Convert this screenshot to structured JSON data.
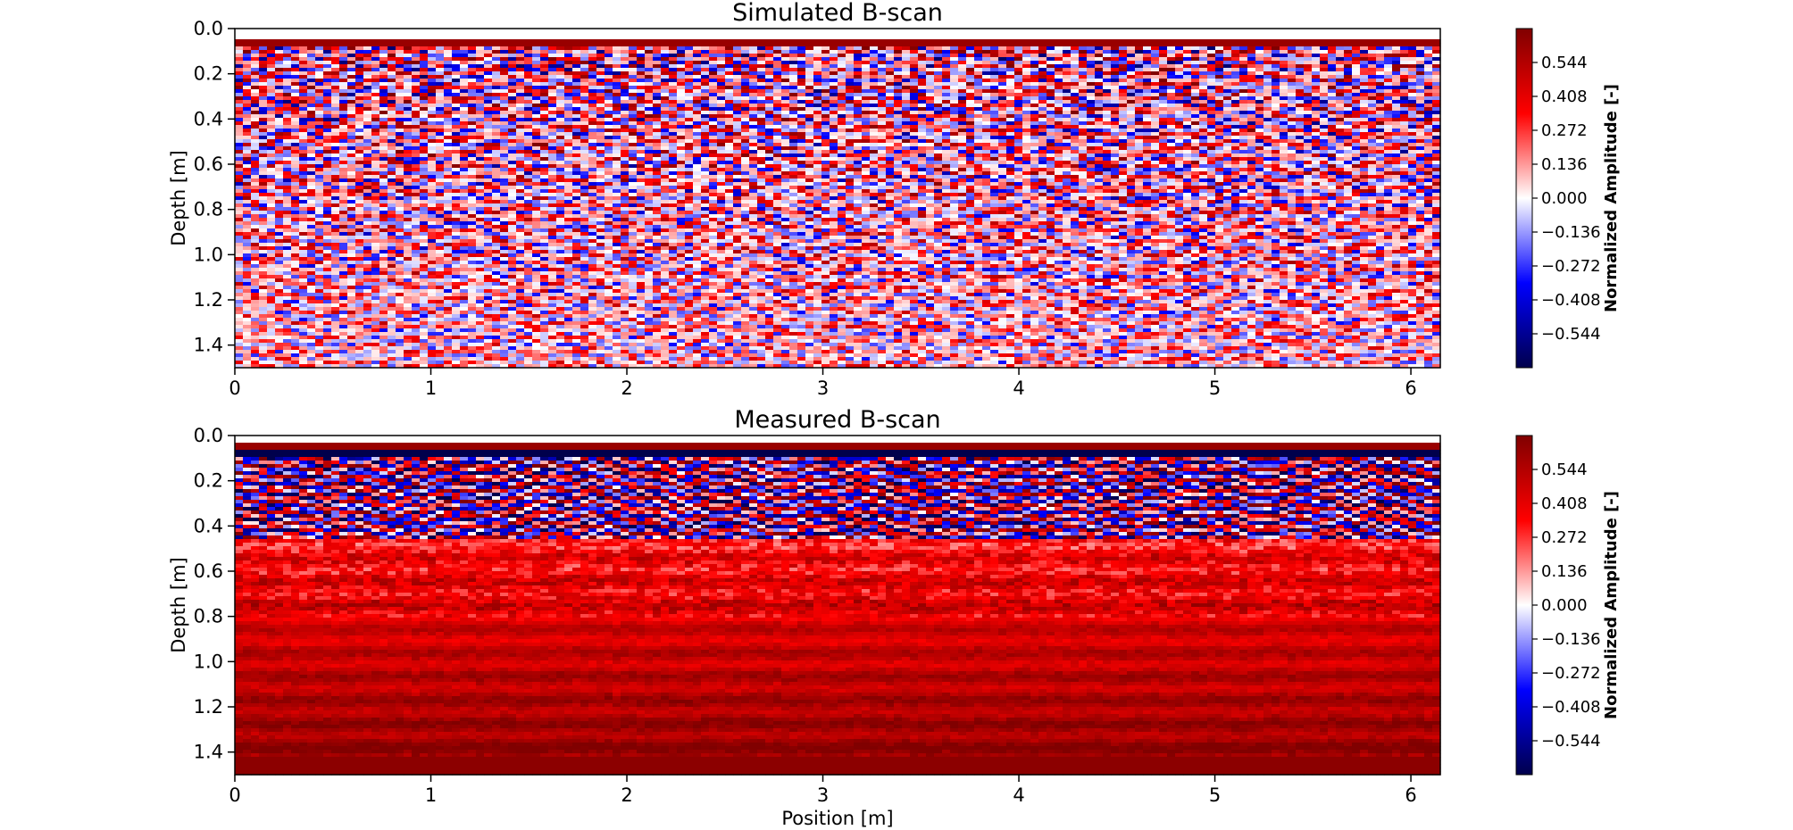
{
  "chart_data": [
    {
      "type": "heatmap",
      "title": "Simulated B-scan",
      "xlabel": "",
      "ylabel": "Depth [m]",
      "xlim": [
        0,
        6.15
      ],
      "ylim": [
        1.5,
        0.0
      ],
      "x_ticks": [
        "0",
        "1",
        "2",
        "3",
        "4",
        "5",
        "6"
      ],
      "y_ticks": [
        "0.0",
        "0.2",
        "0.4",
        "0.6",
        "0.8",
        "1.0",
        "1.2",
        "1.4"
      ],
      "colormap": "seismic",
      "surface_depth": 0.07,
      "pattern": "dense random red/blue fine-scale reflections throughout the depth range, fading slightly toward the bottom",
      "colorbar": {
        "label": "Normalized Amplitude [-]",
        "range": [
          -0.68,
          0.68
        ],
        "ticks": [
          "0.544",
          "0.408",
          "0.272",
          "0.136",
          "0.000",
          "−0.136",
          "−0.272",
          "−0.408",
          "−0.544"
        ],
        "tick_values": [
          0.544,
          0.408,
          0.272,
          0.136,
          0.0,
          -0.136,
          -0.272,
          -0.408,
          -0.544
        ]
      }
    },
    {
      "type": "heatmap",
      "title": "Measured B-scan",
      "xlabel": "Position [m]",
      "ylabel": "Depth [m]",
      "xlim": [
        0,
        6.15
      ],
      "ylim": [
        1.5,
        0.0
      ],
      "x_ticks": [
        "0",
        "1",
        "2",
        "3",
        "4",
        "5",
        "6"
      ],
      "y_ticks": [
        "0.0",
        "0.2",
        "0.4",
        "0.6",
        "0.8",
        "1.0",
        "1.2",
        "1.4"
      ],
      "colormap": "seismic",
      "surface_depth": 0.04,
      "pattern": "strong blue band near 0.08 m, mixed red/blue reflections 0.1-0.45 m, mostly red below with horizontal banding",
      "colorbar": {
        "label": "Normalized Amplitude [-]",
        "range": [
          -0.68,
          0.68
        ],
        "ticks": [
          "0.544",
          "0.408",
          "0.272",
          "0.136",
          "0.000",
          "−0.136",
          "−0.272",
          "−0.408",
          "−0.544"
        ],
        "tick_values": [
          0.544,
          0.408,
          0.272,
          0.136,
          0.0,
          -0.136,
          -0.272,
          -0.408,
          -0.544
        ]
      }
    }
  ],
  "colors": {
    "dark_red": "#800000",
    "red": "#ff0000",
    "white": "#ffffff",
    "blue": "#0000ff",
    "dark_blue": "#00004c"
  }
}
